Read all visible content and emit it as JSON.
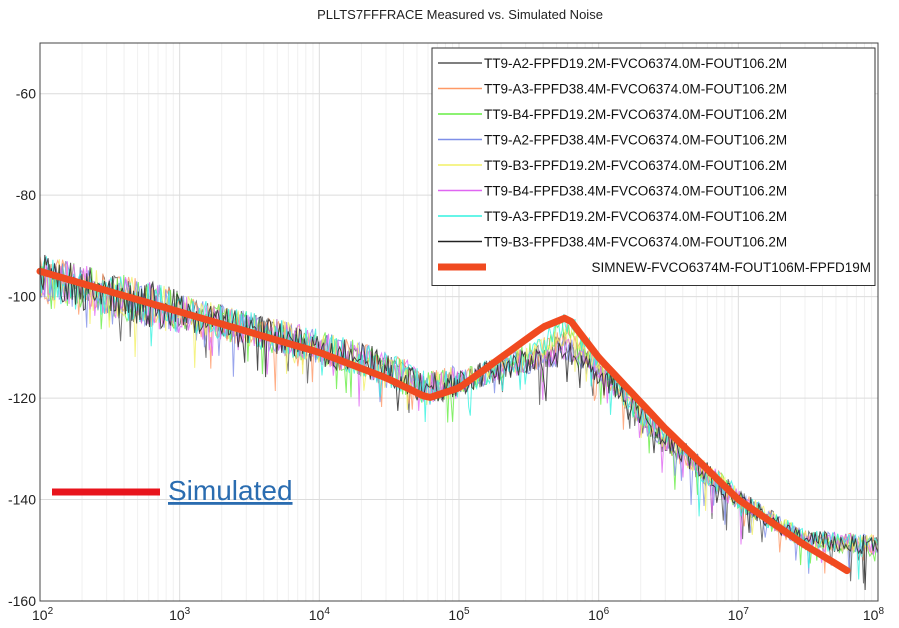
{
  "chart_data": {
    "type": "line",
    "title": "PLLTS7FFFRACE Measured vs. Simulated Noise",
    "xlabel": "",
    "ylabel": "",
    "x_scale": "log",
    "xlim": [
      100,
      100000000
    ],
    "ylim": [
      -160,
      -50
    ],
    "grid": true,
    "legend_position": "top-right",
    "x_ticks": [
      100,
      1000,
      10000,
      100000,
      1000000,
      10000000,
      100000000
    ],
    "x_tick_labels": [
      {
        "base": "10",
        "exp": "2"
      },
      {
        "base": "10",
        "exp": "3"
      },
      {
        "base": "10",
        "exp": "4"
      },
      {
        "base": "10",
        "exp": "5"
      },
      {
        "base": "10",
        "exp": "6"
      },
      {
        "base": "10",
        "exp": "7"
      },
      {
        "base": "10",
        "exp": "8"
      }
    ],
    "y_ticks": [
      -160,
      -140,
      -120,
      -100,
      -80,
      -60
    ],
    "y_tick_labels": [
      "-160",
      "-140",
      "-120",
      "-100",
      "-80",
      "-60"
    ],
    "series": [
      {
        "name": "TT9-A2-FPFD19.2M-FVCO6374.0M-FOUT106.2M",
        "color": "#555555",
        "style": "measured",
        "peak_offset": -1.0
      },
      {
        "name": "TT9-A3-FPFD38.4M-FVCO6374.0M-FOUT106.2M",
        "color": "#ff9966",
        "style": "measured",
        "peak_offset": 0.5
      },
      {
        "name": "TT9-B4-FPFD19.2M-FVCO6374.0M-FOUT106.2M",
        "color": "#66ee44",
        "style": "measured",
        "peak_offset": 2.0
      },
      {
        "name": "TT9-A2-FPFD38.4M-FVCO6374.0M-FOUT106.2M",
        "color": "#7f8fe8",
        "style": "measured",
        "peak_offset": -2.0
      },
      {
        "name": "TT9-B3-FPFD19.2M-FVCO6374.0M-FOUT106.2M",
        "color": "#f2f066",
        "style": "measured",
        "peak_offset": 1.0
      },
      {
        "name": "TT9-B4-FPFD38.4M-FVCO6374.0M-FOUT106.2M",
        "color": "#e066f2",
        "style": "measured",
        "peak_offset": -1.5
      },
      {
        "name": "TT9-A3-FPFD19.2M-FVCO6374.0M-FOUT106.2M",
        "color": "#33f2e0",
        "style": "measured",
        "peak_offset": 3.0
      },
      {
        "name": "TT9-B3-FPFD38.4M-FVCO6374.0M-FOUT106.2M",
        "color": "#222222",
        "style": "measured",
        "peak_offset": -2.5
      },
      {
        "name": "SIMNEW-FVCO6374M-FOUT106M-FPFD19M",
        "color": "#f04a20",
        "style": "simulated",
        "x": [
          100,
          1000,
          10000,
          30000,
          60000,
          100000,
          200000,
          400000,
          600000,
          1000000,
          3000000,
          10000000,
          30000000,
          60000000
        ],
        "y": [
          -95,
          -103,
          -111,
          -116,
          -120,
          -118,
          -112,
          -106,
          -104,
          -112,
          -126,
          -140,
          -149,
          -154
        ]
      }
    ],
    "measured_envelope": {
      "x": [
        100,
        1000,
        10000,
        30000,
        60000,
        100000,
        200000,
        400000,
        600000,
        1000000,
        3000000,
        10000000,
        30000000,
        100000000
      ],
      "y": [
        -96,
        -103,
        -110,
        -114,
        -118,
        -117,
        -114,
        -111,
        -108,
        -114,
        -128,
        -140,
        -148,
        -149
      ]
    },
    "annotations": [
      {
        "text": "Simulated",
        "color": "#e8141c"
      }
    ]
  }
}
